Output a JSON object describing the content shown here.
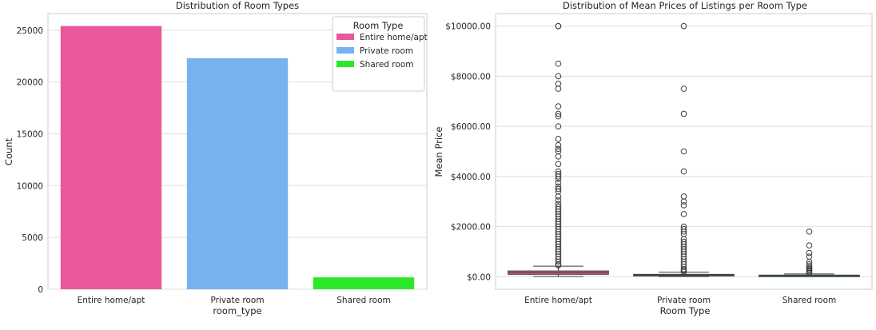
{
  "chart_data": [
    {
      "type": "bar",
      "title": "Distribution of Room Types",
      "xlabel": "room_type",
      "ylabel": "Count",
      "categories": [
        "Entire home/apt",
        "Private room",
        "Shared room"
      ],
      "values": [
        25400,
        22300,
        1150
      ],
      "colors": [
        "#e8589a",
        "#78b1ef",
        "#2be82b"
      ],
      "ylim": [
        0,
        26600
      ],
      "yticks": [
        0,
        5000,
        10000,
        15000,
        20000,
        25000
      ],
      "grid": true,
      "legend": {
        "title": "Room Type",
        "placement": "top-right",
        "entries": [
          "Entire home/apt",
          "Private room",
          "Shared room"
        ]
      }
    },
    {
      "type": "box",
      "title": "Distribution of Mean Prices of Listings per Room Type",
      "xlabel": "Room Type",
      "ylabel": "Mean Price",
      "categories": [
        "Entire home/apt",
        "Private room",
        "Shared room"
      ],
      "colors": [
        "#e8589a",
        "#78b1ef",
        "#2be82b"
      ],
      "ylim": [
        -500,
        10500
      ],
      "yticks": [
        0,
        2000,
        4000,
        6000,
        8000,
        10000
      ],
      "ytick_labels": [
        "$0.00",
        "$2000.00",
        "$4000.00",
        "$6000.00",
        "$8000.00",
        "$10000.00"
      ],
      "grid": true,
      "boxes": [
        {
          "q1": 95,
          "median": 160,
          "q3": 230,
          "whisker_low": 10,
          "whisker_high": 420,
          "outliers": [
            10000,
            10000,
            8500,
            8000,
            7700,
            7500,
            6800,
            6500,
            6400,
            6000,
            5500,
            5250,
            5100,
            5000,
            4800,
            4500,
            4200,
            4100,
            4000,
            3900,
            3750,
            3600,
            3500,
            3400,
            3200,
            3050,
            2900,
            2800,
            2700,
            2600,
            2500,
            2400,
            2300,
            2200,
            2100,
            2000,
            1900,
            1800,
            1700,
            1600,
            1500,
            1400,
            1300,
            1200,
            1100,
            1000,
            900,
            800,
            700,
            600,
            500,
            450
          ]
        },
        {
          "q1": 40,
          "median": 65,
          "q3": 95,
          "whisker_low": 10,
          "whisker_high": 180,
          "outliers": [
            10000,
            7500,
            6500,
            5000,
            4200,
            3200,
            3000,
            2850,
            2500,
            2000,
            1900,
            1800,
            1700,
            1500,
            1400,
            1300,
            1200,
            1100,
            1000,
            900,
            800,
            700,
            600,
            500,
            400,
            300,
            250,
            200
          ]
        },
        {
          "q1": 30,
          "median": 45,
          "q3": 65,
          "whisker_low": 10,
          "whisker_high": 110,
          "outliers": [
            1800,
            1250,
            950,
            800,
            600,
            500,
            420,
            350,
            300,
            250,
            200,
            150
          ]
        }
      ]
    }
  ]
}
